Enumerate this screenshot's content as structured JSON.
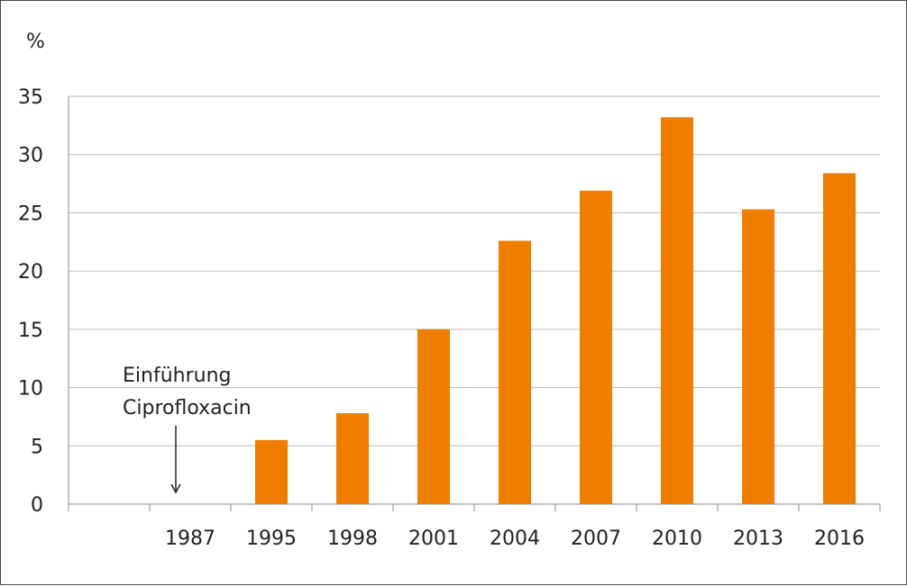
{
  "chart_data": {
    "type": "bar",
    "ylabel": "%",
    "ylim": [
      0,
      35
    ],
    "yticks": [
      0,
      5,
      10,
      15,
      20,
      25,
      30,
      35
    ],
    "grid": true,
    "categories": [
      "",
      "1987",
      "1995",
      "1998",
      "2001",
      "2004",
      "2007",
      "2010",
      "2013",
      "2016"
    ],
    "values": [
      null,
      null,
      5.5,
      7.8,
      15.0,
      22.6,
      26.9,
      33.2,
      25.3,
      28.4
    ],
    "bar_color": "#ef7d00",
    "annotation": {
      "lines": [
        "Einführung",
        "Ciprofloxacin"
      ],
      "category": "1987",
      "arrow": "down"
    }
  }
}
